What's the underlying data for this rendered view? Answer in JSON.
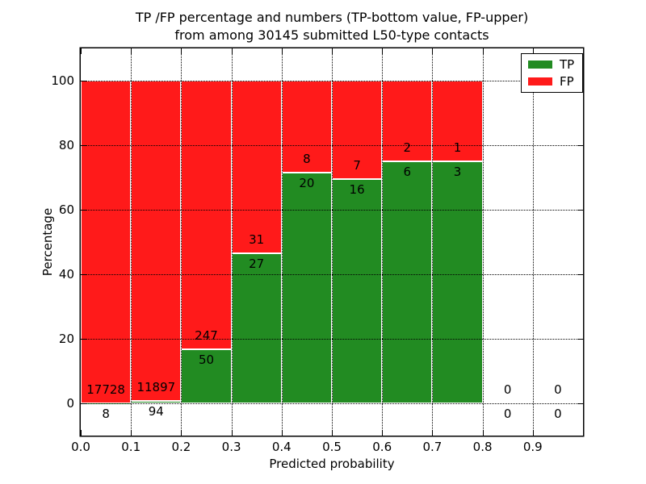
{
  "chart_data": {
    "type": "bar",
    "stacked": true,
    "percentage": true,
    "title_line1": "TP /FP percentage and numbers (TP-bottom value, FP-upper)",
    "title_line2": "from among 30145 submitted L50-type contacts",
    "xlabel": "Predicted probability",
    "ylabel": "Percentage",
    "xlim": [
      0.0,
      1.0
    ],
    "ylim": [
      -10,
      110
    ],
    "x_ticks": [
      0.0,
      0.1,
      0.2,
      0.3,
      0.4,
      0.5,
      0.6,
      0.7,
      0.8,
      0.9
    ],
    "y_ticks": [
      0,
      20,
      40,
      60,
      80,
      100
    ],
    "grid": true,
    "grid_style": "dotted",
    "bin_width": 0.1,
    "bin_starts": [
      0.0,
      0.1,
      0.2,
      0.3,
      0.4,
      0.5,
      0.6,
      0.7,
      0.8,
      0.9
    ],
    "total_submitted": 30145,
    "series": [
      {
        "name": "TP",
        "color": "#228b22",
        "counts": [
          8,
          94,
          50,
          27,
          20,
          16,
          6,
          3,
          0,
          0
        ]
      },
      {
        "name": "FP",
        "color": "#ff1a1a",
        "counts": [
          17728,
          11897,
          247,
          31,
          8,
          7,
          2,
          1,
          0,
          0
        ]
      }
    ],
    "legend": {
      "position": "upper right",
      "entries": [
        {
          "label": "TP",
          "color": "#228b22"
        },
        {
          "label": "FP",
          "color": "#ff1a1a"
        }
      ]
    }
  }
}
